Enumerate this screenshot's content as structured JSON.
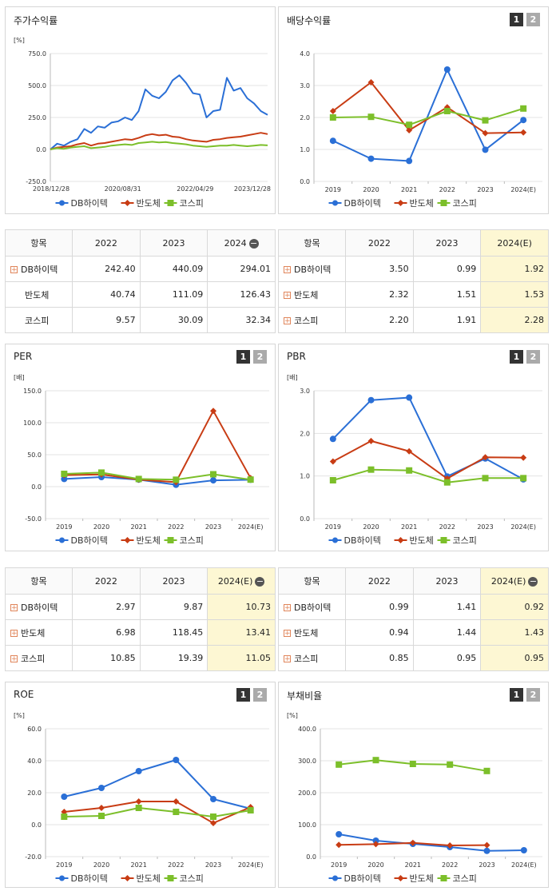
{
  "legend_labels": [
    "DB하이텍",
    "반도체",
    "코스피"
  ],
  "series_colors": [
    "#2a6fd6",
    "#c83c14",
    "#7cbf2a"
  ],
  "pager": [
    "1",
    "2"
  ],
  "panels": {
    "stock": {
      "title": "주가수익률",
      "unit": "[%]"
    },
    "dividend": {
      "title": "배당수익률",
      "unit": ""
    },
    "per": {
      "title": "PER",
      "unit": "[배]"
    },
    "pbr": {
      "title": "PBR",
      "unit": "[배]"
    },
    "roe": {
      "title": "ROE",
      "unit": "[%]"
    },
    "debt": {
      "title": "부채비율",
      "unit": "[%]"
    }
  },
  "tables": {
    "stock": {
      "header": [
        "항목",
        "2022",
        "2023",
        "2024"
      ],
      "rows": [
        {
          "name": "DB하이텍",
          "expand": true,
          "values": [
            "242.40",
            "440.09",
            "294.01"
          ]
        },
        {
          "name": "반도체",
          "expand": false,
          "values": [
            "40.74",
            "111.09",
            "126.43"
          ]
        },
        {
          "name": "코스피",
          "expand": false,
          "values": [
            "9.57",
            "30.09",
            "32.34"
          ]
        }
      ]
    },
    "dividend": {
      "header": [
        "항목",
        "2022",
        "2023",
        "2024(E)"
      ],
      "rows": [
        {
          "name": "DB하이텍",
          "expand": true,
          "values": [
            "3.50",
            "0.99",
            "1.92"
          ]
        },
        {
          "name": "반도체",
          "expand": true,
          "values": [
            "2.32",
            "1.51",
            "1.53"
          ]
        },
        {
          "name": "코스피",
          "expand": true,
          "values": [
            "2.20",
            "1.91",
            "2.28"
          ]
        }
      ]
    },
    "per": {
      "header": [
        "항목",
        "2022",
        "2023",
        "2024(E)"
      ],
      "rows": [
        {
          "name": "DB하이텍",
          "expand": true,
          "values": [
            "2.97",
            "9.87",
            "10.73"
          ]
        },
        {
          "name": "반도체",
          "expand": true,
          "values": [
            "6.98",
            "118.45",
            "13.41"
          ]
        },
        {
          "name": "코스피",
          "expand": true,
          "values": [
            "10.85",
            "19.39",
            "11.05"
          ]
        }
      ]
    },
    "pbr": {
      "header": [
        "항목",
        "2022",
        "2023",
        "2024(E)"
      ],
      "rows": [
        {
          "name": "DB하이텍",
          "expand": true,
          "values": [
            "0.99",
            "1.41",
            "0.92"
          ]
        },
        {
          "name": "반도체",
          "expand": true,
          "values": [
            "0.94",
            "1.44",
            "1.43"
          ]
        },
        {
          "name": "코스피",
          "expand": true,
          "values": [
            "0.85",
            "0.95",
            "0.95"
          ]
        }
      ]
    }
  },
  "chart_data": [
    {
      "id": "stock",
      "type": "line",
      "title": "주가수익률",
      "ylabel": "[%]",
      "ylim": [
        -250,
        750
      ],
      "yticks": [
        "750.0",
        "500.0",
        "250.0",
        "0.0",
        "-250.0"
      ],
      "xticks": [
        "2018/12/28",
        "2020/08/31",
        "2022/04/29",
        "2023/12/28"
      ],
      "x": [
        0,
        2,
        4,
        6,
        8,
        10,
        12,
        14,
        16,
        18,
        20,
        22,
        24,
        26,
        28,
        30,
        32,
        34,
        36,
        38,
        40,
        42,
        44,
        46,
        48,
        50,
        52,
        54,
        56,
        58,
        60,
        62,
        64
      ],
      "series": [
        {
          "name": "DB하이텍",
          "values": [
            0,
            45,
            30,
            60,
            80,
            160,
            130,
            180,
            170,
            210,
            220,
            250,
            230,
            300,
            470,
            420,
            400,
            450,
            540,
            580,
            520,
            440,
            430,
            250,
            300,
            310,
            560,
            460,
            480,
            400,
            360,
            300,
            270
          ]
        },
        {
          "name": "반도체",
          "values": [
            0,
            15,
            20,
            25,
            40,
            50,
            30,
            45,
            50,
            60,
            70,
            80,
            75,
            90,
            110,
            120,
            110,
            115,
            100,
            95,
            80,
            70,
            65,
            60,
            75,
            80,
            90,
            95,
            100,
            110,
            120,
            130,
            120
          ]
        },
        {
          "name": "코스피",
          "values": [
            0,
            10,
            5,
            15,
            20,
            25,
            10,
            15,
            20,
            30,
            35,
            40,
            35,
            50,
            55,
            60,
            55,
            58,
            50,
            45,
            40,
            30,
            25,
            20,
            25,
            30,
            30,
            35,
            30,
            25,
            30,
            35,
            32
          ]
        }
      ]
    },
    {
      "id": "dividend",
      "type": "line",
      "title": "배당수익률",
      "ylim": [
        0,
        4
      ],
      "yticks": [
        "4.0",
        "3.0",
        "2.0",
        "1.0",
        "0.0"
      ],
      "categories": [
        "2019",
        "2020",
        "2021",
        "2022",
        "2023",
        "2024(E)"
      ],
      "series": [
        {
          "name": "DB하이텍",
          "values": [
            1.27,
            0.71,
            0.64,
            3.5,
            0.99,
            1.92
          ]
        },
        {
          "name": "반도체",
          "values": [
            2.2,
            3.1,
            1.6,
            2.32,
            1.51,
            1.53
          ]
        },
        {
          "name": "코스피",
          "values": [
            2.0,
            2.02,
            1.77,
            2.2,
            1.91,
            2.28
          ]
        }
      ]
    },
    {
      "id": "per",
      "type": "line",
      "title": "PER",
      "ylabel": "[배]",
      "ylim": [
        -50,
        150
      ],
      "yticks": [
        "150.0",
        "100.0",
        "50.0",
        "0.0",
        "-50.0"
      ],
      "categories": [
        "2019",
        "2020",
        "2021",
        "2022",
        "2023",
        "2024(E)"
      ],
      "series": [
        {
          "name": "DB하이텍",
          "values": [
            12,
            15,
            11,
            2.97,
            9.87,
            10.73
          ]
        },
        {
          "name": "반도체",
          "values": [
            18,
            19,
            11,
            6.98,
            118.45,
            13.41
          ]
        },
        {
          "name": "코스피",
          "values": [
            20,
            22,
            12,
            10.85,
            19.39,
            11.05
          ]
        }
      ]
    },
    {
      "id": "pbr",
      "type": "line",
      "title": "PBR",
      "ylabel": "[배]",
      "ylim": [
        0,
        3
      ],
      "yticks": [
        "3.0",
        "2.0",
        "1.0",
        "0.0"
      ],
      "categories": [
        "2019",
        "2020",
        "2021",
        "2022",
        "2023",
        "2024(E)"
      ],
      "series": [
        {
          "name": "DB하이텍",
          "values": [
            1.87,
            2.78,
            2.84,
            0.99,
            1.41,
            0.92
          ]
        },
        {
          "name": "반도체",
          "values": [
            1.34,
            1.82,
            1.58,
            0.94,
            1.44,
            1.43
          ]
        },
        {
          "name": "코스피",
          "values": [
            0.9,
            1.15,
            1.13,
            0.85,
            0.95,
            0.95
          ]
        }
      ]
    },
    {
      "id": "roe",
      "type": "line",
      "title": "ROE",
      "ylabel": "[%]",
      "ylim": [
        -20,
        60
      ],
      "yticks": [
        "60.0",
        "40.0",
        "20.0",
        "0.0",
        "-20.0"
      ],
      "categories": [
        "2019",
        "2020",
        "2021",
        "2022",
        "2023",
        "2024(E)"
      ],
      "series": [
        {
          "name": "DB하이텍",
          "values": [
            17.5,
            23,
            33.5,
            40.5,
            16,
            10
          ]
        },
        {
          "name": "반도체",
          "values": [
            8,
            10.5,
            14.5,
            14.5,
            1,
            11
          ]
        },
        {
          "name": "코스피",
          "values": [
            5,
            5.5,
            10.5,
            8,
            5,
            9
          ]
        }
      ]
    },
    {
      "id": "debt",
      "type": "line",
      "title": "부채비율",
      "ylabel": "[%]",
      "ylim": [
        0,
        400
      ],
      "yticks": [
        "400.0",
        "300.0",
        "200.0",
        "100.0",
        "0.0"
      ],
      "categories": [
        "2019",
        "2020",
        "2021",
        "2022",
        "2023",
        "2024(E)"
      ],
      "series": [
        {
          "name": "DB하이텍",
          "values": [
            70,
            50,
            40,
            30,
            18,
            20
          ]
        },
        {
          "name": "반도체",
          "values": [
            37,
            39,
            43,
            35,
            36,
            null
          ]
        },
        {
          "name": "코스피",
          "values": [
            288,
            302,
            290,
            288,
            268,
            null
          ]
        }
      ]
    }
  ]
}
